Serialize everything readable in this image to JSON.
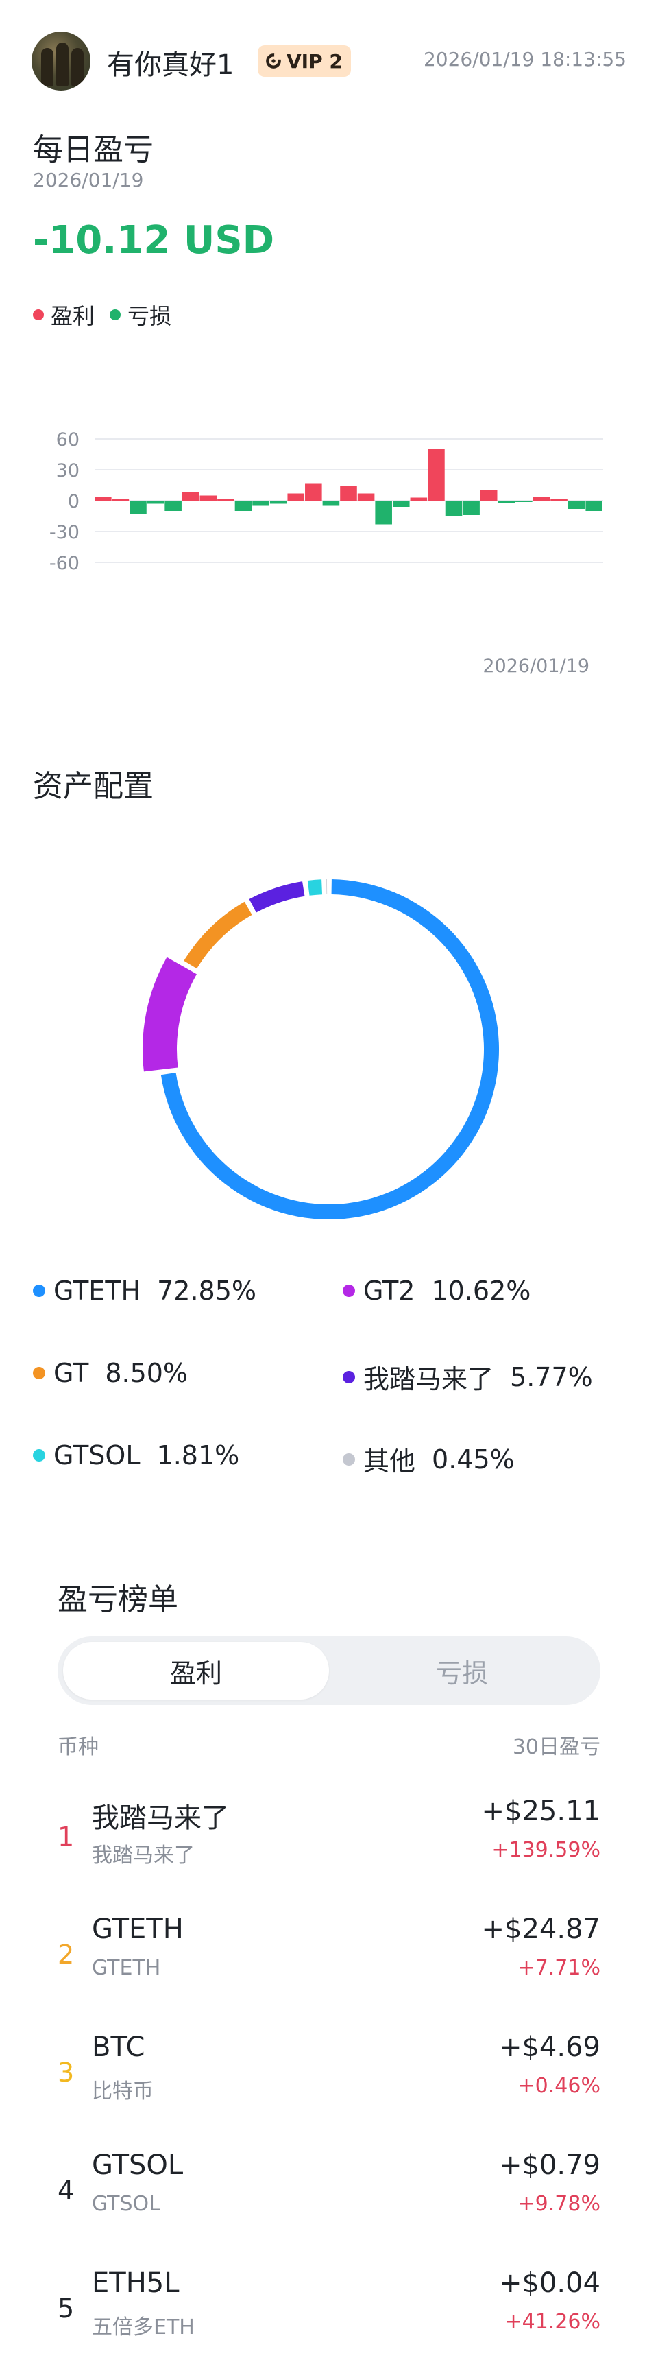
{
  "header": {
    "username": "有你真好1",
    "vip_label": "VIP 2",
    "timestamp": "2026/01/19 18:13:55"
  },
  "daily_pnl": {
    "title": "每日盈亏",
    "date": "2026/01/19",
    "value": "-10.12 USD",
    "legend": [
      {
        "label": "盈利",
        "color": "#f0455b"
      },
      {
        "label": "亏损",
        "color": "#20b26c"
      }
    ]
  },
  "chart_data": {
    "type": "bar",
    "title": "",
    "xlabel": "",
    "ylabel": "",
    "ylim": [
      -60,
      60
    ],
    "yticks": [
      60,
      30,
      0,
      -30,
      -60
    ],
    "x_tick_label": "2026/01/19",
    "grid": true,
    "colors": {
      "profit": "#f0455b",
      "loss": "#20b26c"
    },
    "values": [
      4,
      2,
      -13,
      -3,
      -10,
      8,
      5,
      0,
      -10,
      -5,
      -3,
      7,
      17,
      -5,
      14,
      7,
      -23,
      -6,
      3,
      50,
      -15,
      -14,
      10,
      -2,
      -1,
      4,
      1,
      -8,
      -10
    ]
  },
  "allocation": {
    "title": "资产配置",
    "items": [
      {
        "name": "GTETH",
        "pct": "72.85%",
        "value": 72.85,
        "color": "#1e90ff"
      },
      {
        "name": "GT2",
        "pct": "10.62%",
        "value": 10.62,
        "color": "#b428e6"
      },
      {
        "name": "GT",
        "pct": "8.50%",
        "value": 8.5,
        "color": "#f39323"
      },
      {
        "name": "我踏马来了",
        "pct": "5.77%",
        "value": 5.77,
        "color": "#5b21e0"
      },
      {
        "name": "GTSOL",
        "pct": "1.81%",
        "value": 1.81,
        "color": "#28d3e0"
      },
      {
        "name": "其他",
        "pct": "0.45%",
        "value": 0.45,
        "color": "#c4c7d0"
      }
    ]
  },
  "leaderboard": {
    "title": "盈亏榜单",
    "tabs": [
      "盈利",
      "亏损"
    ],
    "col_coin": "币种",
    "col_pnl": "30日盈亏",
    "rows": [
      {
        "rank": "1",
        "rank_color": "#e0405a",
        "name": "我踏马来了",
        "sub": "我踏马来了",
        "amount": "+$25.11",
        "pct": "+139.59%"
      },
      {
        "rank": "2",
        "rank_color": "#f2a72b",
        "name": "GTETH",
        "sub": "GTETH",
        "amount": "+$24.87",
        "pct": "+7.71%"
      },
      {
        "rank": "3",
        "rank_color": "#f2b820",
        "name": "BTC",
        "sub": "比特币",
        "amount": "+$4.69",
        "pct": "+0.46%"
      },
      {
        "rank": "4",
        "rank_color": "#1f2329",
        "name": "GTSOL",
        "sub": "GTSOL",
        "amount": "+$0.79",
        "pct": "+9.78%"
      },
      {
        "rank": "5",
        "rank_color": "#1f2329",
        "name": "ETH5L",
        "sub": "五倍多ETH",
        "amount": "+$0.04",
        "pct": "+41.26%"
      }
    ]
  }
}
